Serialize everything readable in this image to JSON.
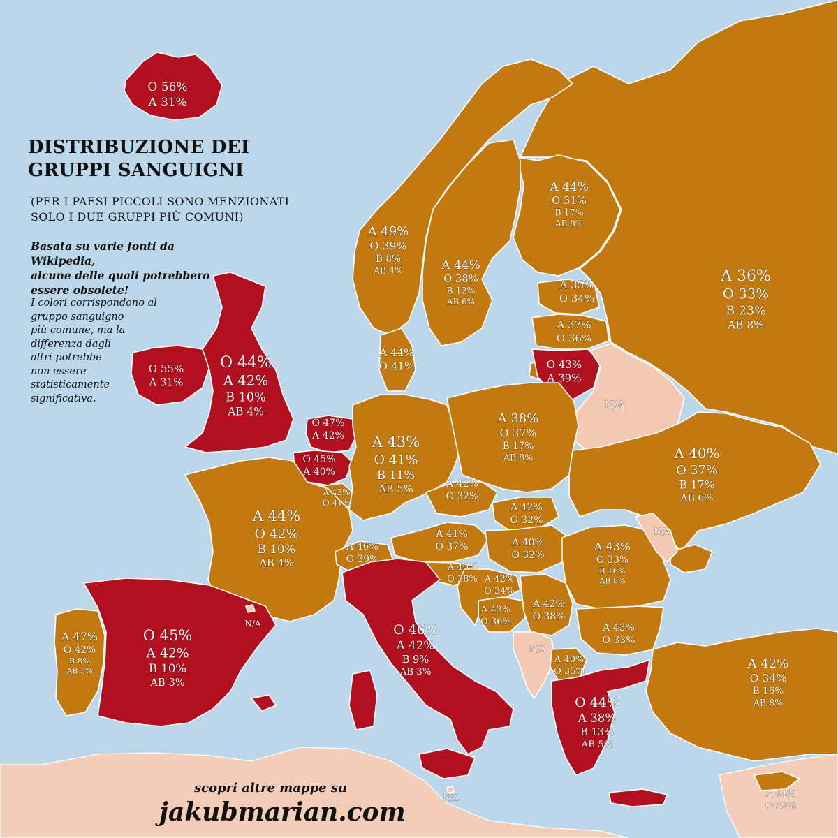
{
  "header": {
    "title_line1": "DISTRIBUZIONE DEI",
    "title_line2": "GRUPPI SANGUIGNI",
    "subtitle_line1": "(PER I PAESI PICCOLI SONO MENZIONATI",
    "subtitle_line2": "SOLO I DUE GRUPPI PIÙ COMUNI)",
    "note_lines": [
      "Basata su varie fonti da Wikipedia,",
      "alcune delle quali potrebbero",
      "essere obsolete!"
    ],
    "note2_lines": [
      "I colori corrispondono al",
      "gruppo sanguigno",
      "più comune, ma la",
      "differenza dagli",
      "altri potrebbe",
      "non essere",
      "statisticamente",
      "significativa."
    ]
  },
  "footer": {
    "line1": "scopri altre mappe su",
    "line2": "jakubmarian.com"
  },
  "legend_colors": {
    "A": "#c27a10",
    "O": "#b3101f",
    "NA": "#f3c9b4",
    "sea": "#bcd7ea"
  },
  "countries": [
    {
      "id": "iceland",
      "lines": [
        "O 56%",
        "A 31%"
      ]
    },
    {
      "id": "norway",
      "lines": [
        "A 49%",
        "O 39%",
        "B 8%",
        "AB 4%"
      ]
    },
    {
      "id": "sweden",
      "lines": [
        "A 44%",
        "O 38%",
        "B 12%",
        "AB 6%"
      ]
    },
    {
      "id": "finland",
      "lines": [
        "A 44%",
        "O 31%",
        "B 17%",
        "AB 8%"
      ]
    },
    {
      "id": "russia",
      "lines": [
        "A 36%",
        "O 33%",
        "B 23%",
        "AB 8%"
      ]
    },
    {
      "id": "estonia",
      "lines": [
        "A 35%",
        "O 34%"
      ]
    },
    {
      "id": "latvia",
      "lines": [
        "A 37%",
        "O 36%"
      ]
    },
    {
      "id": "lithuania",
      "lines": [
        "O 43%",
        "A 39%"
      ]
    },
    {
      "id": "belarus",
      "lines": [
        "N/A"
      ]
    },
    {
      "id": "denmark",
      "lines": [
        "A 44%",
        "O 41%"
      ]
    },
    {
      "id": "ireland",
      "lines": [
        "O 55%",
        "A 31%"
      ]
    },
    {
      "id": "uk",
      "lines": [
        "O 44%",
        "A 42%",
        "B 10%",
        "AB 4%"
      ]
    },
    {
      "id": "netherlands",
      "lines": [
        "O 47%",
        "A 42%"
      ]
    },
    {
      "id": "belgium",
      "lines": [
        "O 45%",
        "A 40%"
      ]
    },
    {
      "id": "luxembourg",
      "lines": [
        "A 43%",
        "O 41%"
      ]
    },
    {
      "id": "germany",
      "lines": [
        "A 43%",
        "O 41%",
        "B 11%",
        "AB 5%"
      ]
    },
    {
      "id": "poland",
      "lines": [
        "A 38%",
        "O 37%",
        "B 17%",
        "AB 8%"
      ]
    },
    {
      "id": "ukraine",
      "lines": [
        "A 40%",
        "O 37%",
        "B 17%",
        "AB 6%"
      ]
    },
    {
      "id": "czechia",
      "lines": [
        "A 42%",
        "O 32%"
      ]
    },
    {
      "id": "slovakia",
      "lines": [
        "A 42%",
        "O 32%"
      ]
    },
    {
      "id": "france",
      "lines": [
        "A 44%",
        "O 42%",
        "B 10%",
        "AB 4%"
      ]
    },
    {
      "id": "switzerland",
      "lines": [
        "A 46%",
        "O 39%"
      ]
    },
    {
      "id": "austria",
      "lines": [
        "A 41%",
        "O 37%"
      ]
    },
    {
      "id": "hungary",
      "lines": [
        "A 40%",
        "O 32%"
      ]
    },
    {
      "id": "slovenia",
      "lines": [
        "A 40%",
        "O 38%"
      ]
    },
    {
      "id": "croatia",
      "lines": [
        "A 42%",
        "O 34%"
      ]
    },
    {
      "id": "bosnia",
      "lines": [
        "A 43%",
        "O 36%"
      ]
    },
    {
      "id": "serbia",
      "lines": [
        "A 42%",
        "O 38%"
      ]
    },
    {
      "id": "romania",
      "lines": [
        "A 43%",
        "O 33%",
        "B 16%",
        "AB 8%"
      ]
    },
    {
      "id": "moldova",
      "lines": [
        "N/A"
      ]
    },
    {
      "id": "bulgaria",
      "lines": [
        "A 43%",
        "O 33%"
      ]
    },
    {
      "id": "montenegro",
      "lines": [
        "N/A"
      ]
    },
    {
      "id": "macedonia",
      "lines": [
        "A 40%",
        "O 35%"
      ]
    },
    {
      "id": "greece",
      "lines": [
        "O 44%",
        "A 38%",
        "B 13%",
        "AB 5%"
      ]
    },
    {
      "id": "turkey",
      "lines": [
        "A 42%",
        "O 34%",
        "B 16%",
        "AB 8%"
      ]
    },
    {
      "id": "cyprus",
      "lines": [
        "A 44%",
        "O 39%"
      ]
    },
    {
      "id": "portugal",
      "lines": [
        "A 47%",
        "O 42%",
        "B 8%",
        "AB 3%"
      ]
    },
    {
      "id": "spain",
      "lines": [
        "O 45%",
        "A 42%",
        "B 10%",
        "AB 3%"
      ]
    },
    {
      "id": "andorra",
      "lines": [
        "N/A"
      ]
    },
    {
      "id": "italy",
      "lines": [
        "O 46%",
        "A 42%",
        "B 9%",
        "AB 3%"
      ]
    },
    {
      "id": "malta",
      "lines": [
        "N/A"
      ]
    }
  ]
}
